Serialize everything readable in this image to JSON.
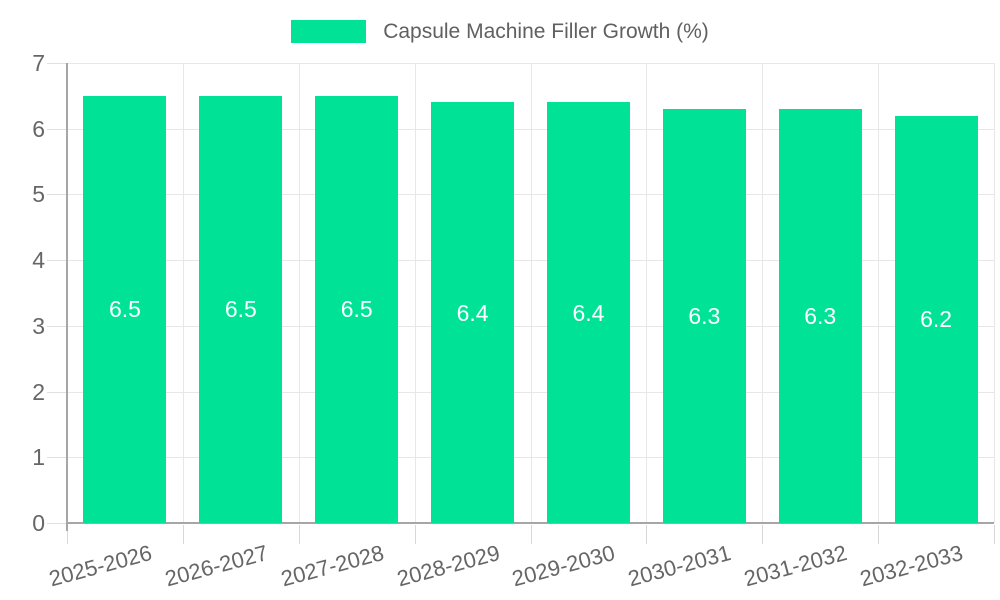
{
  "legend": {
    "label": "Capsule Machine Filler Growth (%)"
  },
  "colors": {
    "bar": "#00E396",
    "bar_value_text": "#ffffff",
    "axis_text": "#666666",
    "legend_text": "#606060",
    "gridline": "#e7e7e7",
    "tick": "#e0e0e0",
    "x_tick": "#d7d7d7",
    "axis_line": "#a6a6a6",
    "background": "#ffffff"
  },
  "chart_data": {
    "type": "bar",
    "title": "Capsule Machine Filler Growth (%)",
    "categories": [
      "2025-2026",
      "2026-2027",
      "2027-2028",
      "2028-2029",
      "2029-2030",
      "2030-2031",
      "2031-2032",
      "2032-2033"
    ],
    "values": [
      6.5,
      6.5,
      6.5,
      6.4,
      6.4,
      6.3,
      6.3,
      6.2
    ],
    "value_labels": [
      "6.5",
      "6.5",
      "6.5",
      "6.4",
      "6.4",
      "6.3",
      "6.3",
      "6.2"
    ],
    "xlabel": "",
    "ylabel": "",
    "ylim": [
      0,
      7
    ],
    "ytick_step": 1,
    "ytick_labels": [
      "0",
      "1",
      "2",
      "3",
      "4",
      "5",
      "6",
      "7"
    ],
    "grid": true,
    "x_labels_rotation_deg": -15,
    "legend_position": "top",
    "value_label_position": "center"
  }
}
